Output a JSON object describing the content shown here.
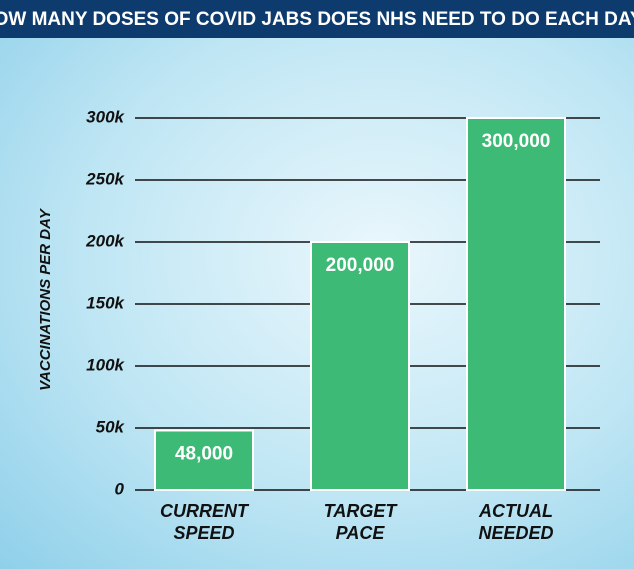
{
  "chart_data": {
    "type": "bar",
    "title": "HOW MANY DOSES OF COVID JABS DOES NHS NEED TO DO EACH DAY?",
    "ylabel": "VACCINATIONS PER DAY",
    "categories": [
      "CURRENT SPEED",
      "TARGET PACE",
      "ACTUAL NEEDED"
    ],
    "values": [
      48000,
      200000,
      300000
    ],
    "value_labels": [
      "48,000",
      "200,000",
      "300,000"
    ],
    "color": "#3dba76",
    "ylim": [
      0,
      300000
    ],
    "yticks": [
      0,
      {
        "value": 50000,
        "label": "50k"
      },
      {
        "value": 100000,
        "label": "100k"
      },
      {
        "value": 150000,
        "label": "150k"
      },
      {
        "value": 200000,
        "label": "200k"
      },
      {
        "value": 250000,
        "label": "250k"
      },
      {
        "value": 300000,
        "label": "300k"
      }
    ],
    "grid": true
  }
}
